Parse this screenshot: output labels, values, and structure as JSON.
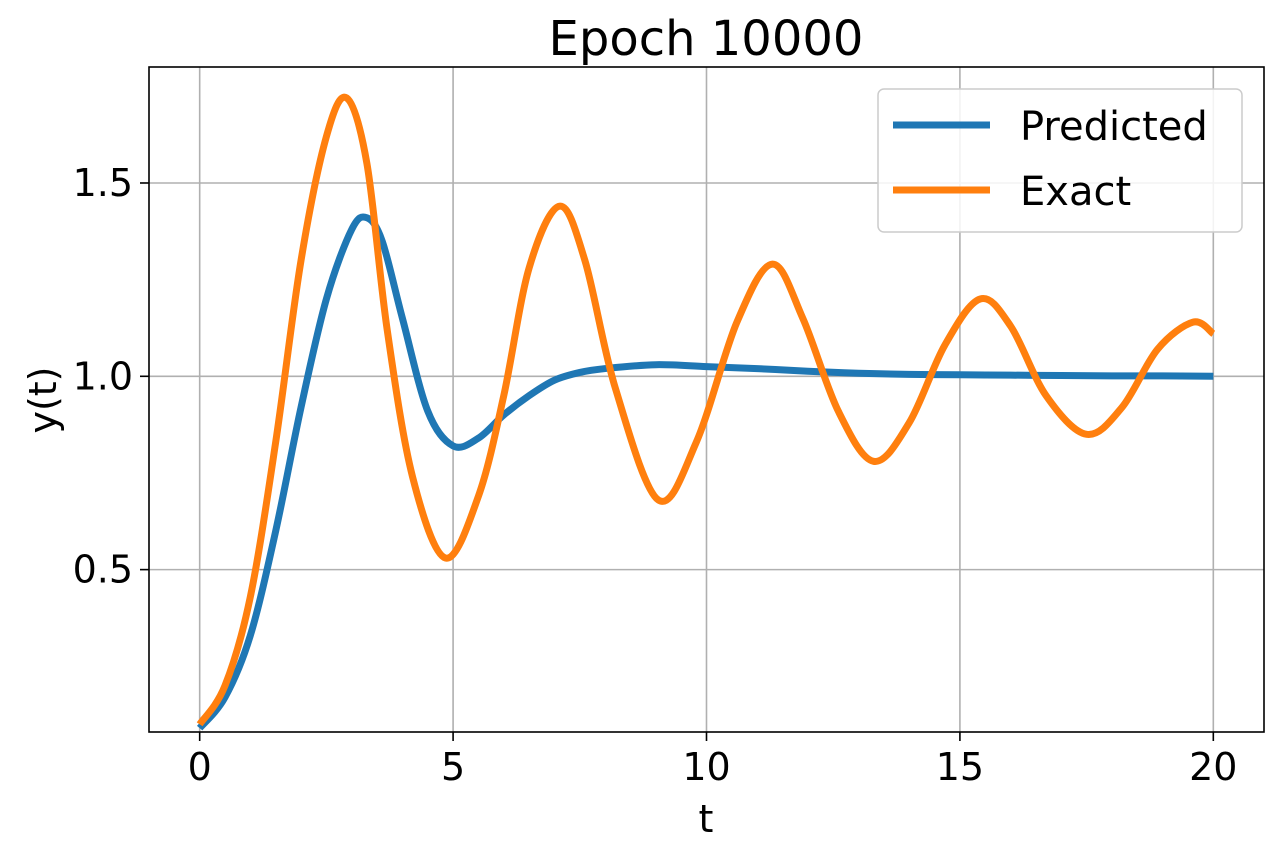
{
  "chart_data": {
    "type": "line",
    "title": "Epoch 10000",
    "xlabel": "t",
    "ylabel": "y(t)",
    "xlim": [
      -1,
      21
    ],
    "ylim": [
      0.08,
      1.8
    ],
    "xticks": [
      0,
      5,
      10,
      15,
      20
    ],
    "xtick_labels": [
      "0",
      "5",
      "10",
      "15",
      "20"
    ],
    "yticks": [
      0.5,
      1.0,
      1.5
    ],
    "ytick_labels": [
      "0.5",
      "1.0",
      "1.5"
    ],
    "grid": true,
    "legend_position": "top-right",
    "series": [
      {
        "name": "Predicted",
        "color": "#1f77b4",
        "x": [
          0,
          0.5,
          1,
          1.5,
          2,
          2.5,
          3,
          3.3,
          3.6,
          4,
          4.5,
          5,
          5.5,
          6,
          6.5,
          7,
          7.5,
          8,
          9,
          10,
          11,
          12,
          13,
          14,
          15,
          16,
          17,
          18,
          19,
          20
        ],
        "values": [
          0.09,
          0.17,
          0.33,
          0.6,
          0.92,
          1.2,
          1.38,
          1.41,
          1.35,
          1.15,
          0.91,
          0.82,
          0.84,
          0.9,
          0.95,
          0.99,
          1.01,
          1.02,
          1.03,
          1.025,
          1.02,
          1.013,
          1.008,
          1.005,
          1.004,
          1.003,
          1.002,
          1.001,
          1.001,
          1.0
        ]
      },
      {
        "name": "Exact",
        "color": "#ff7f0e",
        "x": [
          0,
          0.5,
          1,
          1.5,
          2,
          2.5,
          2.9,
          3.3,
          3.7,
          4.2,
          4.85,
          5.5,
          6,
          6.5,
          7.1,
          7.6,
          8.2,
          9.05,
          9.8,
          10.6,
          11.3,
          11.9,
          12.6,
          13.3,
          14,
          14.7,
          15.4,
          16,
          16.7,
          17.5,
          18.2,
          18.9,
          19.6,
          20
        ],
        "values": [
          0.1,
          0.2,
          0.43,
          0.83,
          1.3,
          1.62,
          1.72,
          1.55,
          1.12,
          0.74,
          0.53,
          0.69,
          0.95,
          1.28,
          1.44,
          1.3,
          0.97,
          0.68,
          0.83,
          1.14,
          1.29,
          1.15,
          0.91,
          0.78,
          0.88,
          1.08,
          1.2,
          1.13,
          0.95,
          0.85,
          0.92,
          1.07,
          1.14,
          1.11
        ]
      }
    ]
  }
}
